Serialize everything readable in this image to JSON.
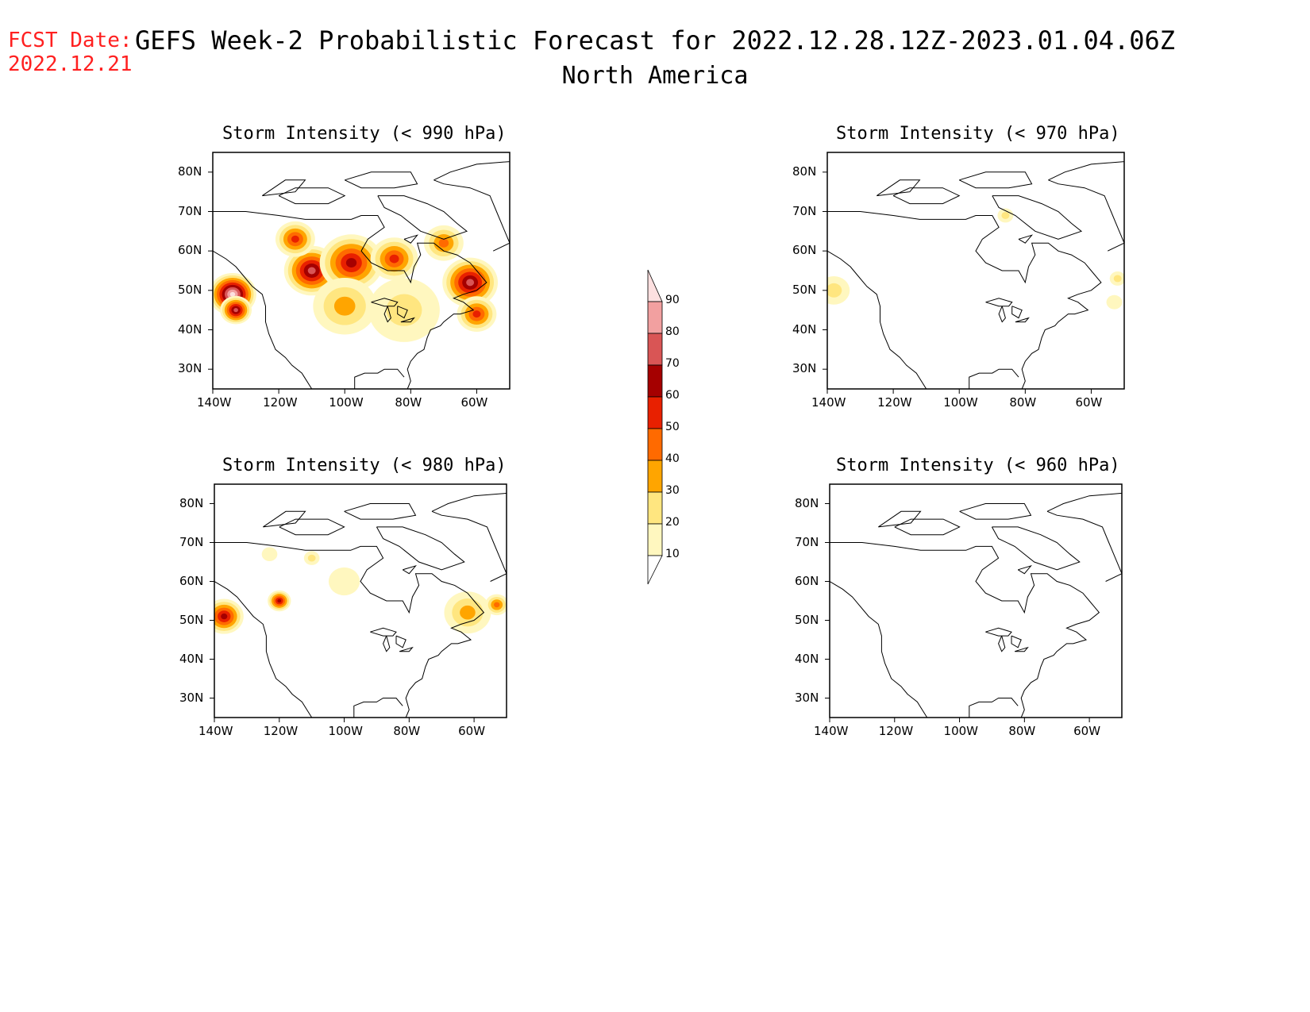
{
  "header": {
    "fcst_line1": "FCST Date:",
    "fcst_line2": "2022.12.21",
    "title": "GEFS Week-2 Probabilistic Forecast for 2022.12.28.12Z-2023.01.04.06Z",
    "subtitle": "North America"
  },
  "axes": {
    "lat_labels": [
      "80N",
      "70N",
      "60N",
      "50N",
      "40N",
      "30N"
    ],
    "lon_labels": [
      "140W",
      "120W",
      "100W",
      "80W",
      "60W"
    ],
    "lat_values": [
      80,
      70,
      60,
      50,
      40,
      30
    ],
    "lon_values": [
      -140,
      -120,
      -100,
      -80,
      -60
    ],
    "lat_range": [
      25,
      85
    ],
    "lon_range": [
      -140,
      -50
    ]
  },
  "colorbar": {
    "levels": [
      "10",
      "20",
      "30",
      "40",
      "50",
      "60",
      "70",
      "80",
      "90"
    ],
    "colors": [
      "#fff7bf",
      "#ffe680",
      "#ffa500",
      "#ff6a00",
      "#e82000",
      "#a50000",
      "#d95555",
      "#f2a0a0",
      "#fde0e0"
    ]
  },
  "panels": [
    {
      "id": "p990",
      "title": "Storm Intensity (< 990 hPa)",
      "blobs": [
        {
          "lon": -134,
          "lat": 49,
          "level": 8,
          "r": 6
        },
        {
          "lon": -133,
          "lat": 45,
          "level": 6,
          "r": 4
        },
        {
          "lon": -110,
          "lat": 55,
          "level": 6,
          "r": 7
        },
        {
          "lon": -98,
          "lat": 57,
          "level": 5,
          "r": 8
        },
        {
          "lon": -85,
          "lat": 58,
          "level": 4,
          "r": 6
        },
        {
          "lon": -62,
          "lat": 52,
          "level": 6,
          "r": 7
        },
        {
          "lon": -100,
          "lat": 46,
          "level": 2,
          "r": 8
        },
        {
          "lon": -82,
          "lat": 45,
          "level": 1,
          "r": 9
        },
        {
          "lon": -115,
          "lat": 63,
          "level": 4,
          "r": 5
        },
        {
          "lon": -70,
          "lat": 62,
          "level": 3,
          "r": 5
        },
        {
          "lon": -60,
          "lat": 44,
          "level": 4,
          "r": 5
        }
      ]
    },
    {
      "id": "p970",
      "title": "Storm Intensity (< 970 hPa)",
      "blobs": [
        {
          "lon": -138,
          "lat": 50,
          "level": 1,
          "r": 4
        },
        {
          "lon": -86,
          "lat": 69,
          "level": 1,
          "r": 2
        },
        {
          "lon": -52,
          "lat": 53,
          "level": 1,
          "r": 2
        },
        {
          "lon": -53,
          "lat": 47,
          "level": 0,
          "r": 2
        }
      ]
    },
    {
      "id": "p980",
      "title": "Storm Intensity (< 980 hPa)",
      "blobs": [
        {
          "lon": -137,
          "lat": 51,
          "level": 5,
          "r": 5
        },
        {
          "lon": -120,
          "lat": 55,
          "level": 5,
          "r": 3
        },
        {
          "lon": -110,
          "lat": 66,
          "level": 1,
          "r": 2
        },
        {
          "lon": -100,
          "lat": 60,
          "level": 0,
          "r": 4
        },
        {
          "lon": -62,
          "lat": 52,
          "level": 2,
          "r": 6
        },
        {
          "lon": -53,
          "lat": 54,
          "level": 3,
          "r": 3
        },
        {
          "lon": -123,
          "lat": 67,
          "level": 0,
          "r": 2
        }
      ]
    },
    {
      "id": "p960",
      "title": "Storm Intensity (< 960 hPa)",
      "blobs": []
    }
  ]
}
